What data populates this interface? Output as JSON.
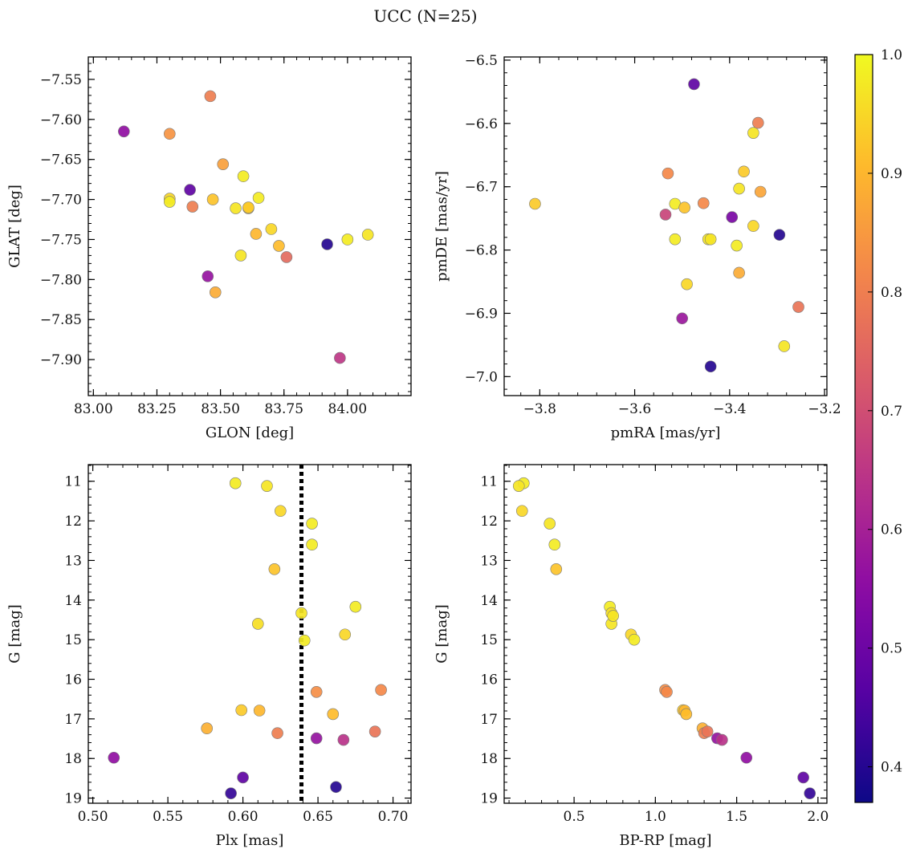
{
  "figure": {
    "title": "UCC (N=25)"
  },
  "chart_data": [
    {
      "type": "scatter",
      "xlabel": "GLON [deg]",
      "ylabel": "GLAT [deg]",
      "xlim": [
        82.98,
        84.25
      ],
      "ylim": [
        -7.945,
        -7.522
      ],
      "xticks": [
        83.0,
        83.25,
        83.5,
        83.75,
        84.0
      ],
      "xtick_labels": [
        "83.00",
        "83.25",
        "83.50",
        "83.75",
        "84.00"
      ],
      "yticks": [
        -7.55,
        -7.6,
        -7.65,
        -7.7,
        -7.75,
        -7.8,
        -7.85,
        -7.9
      ],
      "ytick_labels": [
        "−7.55",
        "−7.60",
        "−7.65",
        "−7.70",
        "−7.75",
        "−7.80",
        "−7.85",
        "−7.90"
      ],
      "x": [
        83.46,
        83.12,
        83.3,
        83.38,
        83.3,
        83.3,
        83.39,
        83.47,
        83.51,
        83.59,
        83.56,
        83.61,
        83.65,
        83.7,
        83.64,
        83.73,
        83.58,
        83.76,
        83.45,
        83.48,
        83.92,
        84.0,
        84.08,
        83.97,
        83.61
      ],
      "y": [
        -7.571,
        -7.615,
        -7.618,
        -7.688,
        -7.699,
        -7.703,
        -7.709,
        -7.7,
        -7.656,
        -7.671,
        -7.711,
        -7.711,
        -7.698,
        -7.737,
        -7.743,
        -7.758,
        -7.77,
        -7.772,
        -7.796,
        -7.816,
        -7.756,
        -7.75,
        -7.744,
        -7.898,
        -7.71
      ],
      "membership": [
        0.8,
        0.56,
        0.84,
        0.48,
        0.95,
        0.98,
        0.8,
        0.92,
        0.86,
        0.98,
        0.97,
        0.93,
        0.98,
        0.95,
        0.9,
        0.91,
        0.97,
        0.76,
        0.57,
        0.88,
        0.4,
        0.98,
        0.97,
        0.65,
        0.93
      ]
    },
    {
      "type": "scatter",
      "xlabel": "pmRA [mas/yr]",
      "ylabel": "pmDE [mas/yr]",
      "xlim": [
        -3.875,
        -3.195
      ],
      "ylim": [
        -7.03,
        -6.495
      ],
      "xticks": [
        -3.8,
        -3.6,
        -3.4,
        -3.2
      ],
      "xtick_labels": [
        "−3.8",
        "−3.6",
        "−3.4",
        "−3.2"
      ],
      "yticks": [
        -6.5,
        -6.6,
        -6.7,
        -6.8,
        -6.9,
        -7.0
      ],
      "ytick_labels": [
        "−6.5",
        "−6.6",
        "−6.7",
        "−6.8",
        "−6.9",
        "−7.0"
      ],
      "x": [
        -3.81,
        -3.475,
        -3.34,
        -3.35,
        -3.53,
        -3.37,
        -3.38,
        -3.335,
        -3.515,
        -3.495,
        -3.455,
        -3.535,
        -3.395,
        -3.35,
        -3.515,
        -3.445,
        -3.44,
        -3.385,
        -3.295,
        -3.49,
        -3.38,
        -3.255,
        -3.5,
        -3.285,
        -3.44
      ],
      "y": [
        -6.727,
        -6.538,
        -6.599,
        -6.615,
        -6.679,
        -6.676,
        -6.703,
        -6.708,
        -6.727,
        -6.733,
        -6.726,
        -6.744,
        -6.748,
        -6.762,
        -6.783,
        -6.783,
        -6.783,
        -6.793,
        -6.776,
        -6.854,
        -6.836,
        -6.89,
        -6.908,
        -6.952,
        -6.984
      ],
      "membership": [
        0.93,
        0.48,
        0.8,
        0.97,
        0.82,
        0.93,
        0.97,
        0.87,
        0.98,
        0.92,
        0.82,
        0.68,
        0.52,
        0.95,
        0.98,
        0.97,
        0.97,
        0.98,
        0.4,
        0.95,
        0.88,
        0.78,
        0.58,
        0.97,
        0.4
      ]
    },
    {
      "type": "scatter",
      "xlabel": "Plx [mas]",
      "ylabel": "G [mag]",
      "xlim": [
        0.497,
        0.712
      ],
      "ylim": [
        19.13,
        10.58
      ],
      "xticks": [
        0.5,
        0.55,
        0.6,
        0.65,
        0.7
      ],
      "xtick_labels": [
        "0.50",
        "0.55",
        "0.60",
        "0.65",
        "0.70"
      ],
      "yticks": [
        11,
        12,
        13,
        14,
        15,
        16,
        17,
        18,
        19
      ],
      "ytick_labels": [
        "11",
        "12",
        "13",
        "14",
        "15",
        "16",
        "17",
        "18",
        "19"
      ],
      "vline": 0.639,
      "x": [
        0.595,
        0.616,
        0.625,
        0.646,
        0.646,
        0.621,
        0.675,
        0.61,
        0.639,
        0.668,
        0.641,
        0.649,
        0.692,
        0.599,
        0.611,
        0.66,
        0.576,
        0.623,
        0.688,
        0.649,
        0.667,
        0.514,
        0.6,
        0.662,
        0.592
      ],
      "y": [
        11.05,
        11.12,
        11.75,
        12.07,
        12.6,
        13.22,
        14.17,
        14.6,
        14.33,
        14.87,
        15.02,
        16.32,
        16.27,
        16.78,
        16.79,
        16.88,
        17.24,
        17.36,
        17.32,
        17.49,
        17.53,
        17.98,
        18.48,
        18.72,
        18.88
      ],
      "membership": [
        0.98,
        0.97,
        0.95,
        0.98,
        0.98,
        0.92,
        0.98,
        0.96,
        0.97,
        0.95,
        0.98,
        0.83,
        0.82,
        0.93,
        0.9,
        0.91,
        0.89,
        0.8,
        0.78,
        0.57,
        0.64,
        0.56,
        0.48,
        0.4,
        0.42
      ]
    },
    {
      "type": "scatter",
      "xlabel": "BP-RP [mag]",
      "ylabel": "G [mag]",
      "xlim": [
        0.07,
        2.055
      ],
      "ylim": [
        19.13,
        10.58
      ],
      "xticks": [
        0.5,
        1.0,
        1.5,
        2.0
      ],
      "xtick_labels": [
        "0.5",
        "1.0",
        "1.5",
        "2.0"
      ],
      "yticks": [
        11,
        12,
        13,
        14,
        15,
        16,
        17,
        18,
        19
      ],
      "ytick_labels": [
        "11",
        "12",
        "13",
        "14",
        "15",
        "16",
        "17",
        "18",
        "19"
      ],
      "x": [
        0.19,
        0.16,
        0.18,
        0.35,
        0.38,
        0.39,
        0.72,
        0.73,
        0.73,
        0.85,
        0.87,
        1.06,
        1.07,
        1.17,
        1.18,
        1.19,
        1.29,
        1.3,
        1.32,
        1.38,
        1.41,
        1.56,
        1.91,
        1.95,
        0.74
      ],
      "y": [
        11.05,
        11.12,
        11.75,
        12.07,
        12.6,
        13.22,
        14.17,
        14.33,
        14.6,
        14.87,
        15.0,
        16.27,
        16.32,
        16.78,
        16.79,
        16.88,
        17.24,
        17.36,
        17.32,
        17.49,
        17.53,
        17.98,
        18.48,
        18.88,
        14.4
      ],
      "membership": [
        0.98,
        0.97,
        0.95,
        0.97,
        0.98,
        0.92,
        0.98,
        0.96,
        0.97,
        0.95,
        0.98,
        0.83,
        0.82,
        0.93,
        0.9,
        0.91,
        0.89,
        0.8,
        0.78,
        0.57,
        0.64,
        0.56,
        0.48,
        0.42,
        0.97
      ]
    }
  ],
  "colorbar": {
    "colormap": "plasma",
    "min": 0.37,
    "max": 1.0,
    "ticks": [
      0.4,
      0.5,
      0.6,
      0.7,
      0.8,
      0.9,
      1.0
    ],
    "tick_labels": [
      "0.4",
      "0.5",
      "0.6",
      "0.7",
      "0.8",
      "0.9",
      "1.0"
    ]
  },
  "style": {
    "vline_color": "#000000",
    "marker_edge": "#7a7a7a"
  }
}
